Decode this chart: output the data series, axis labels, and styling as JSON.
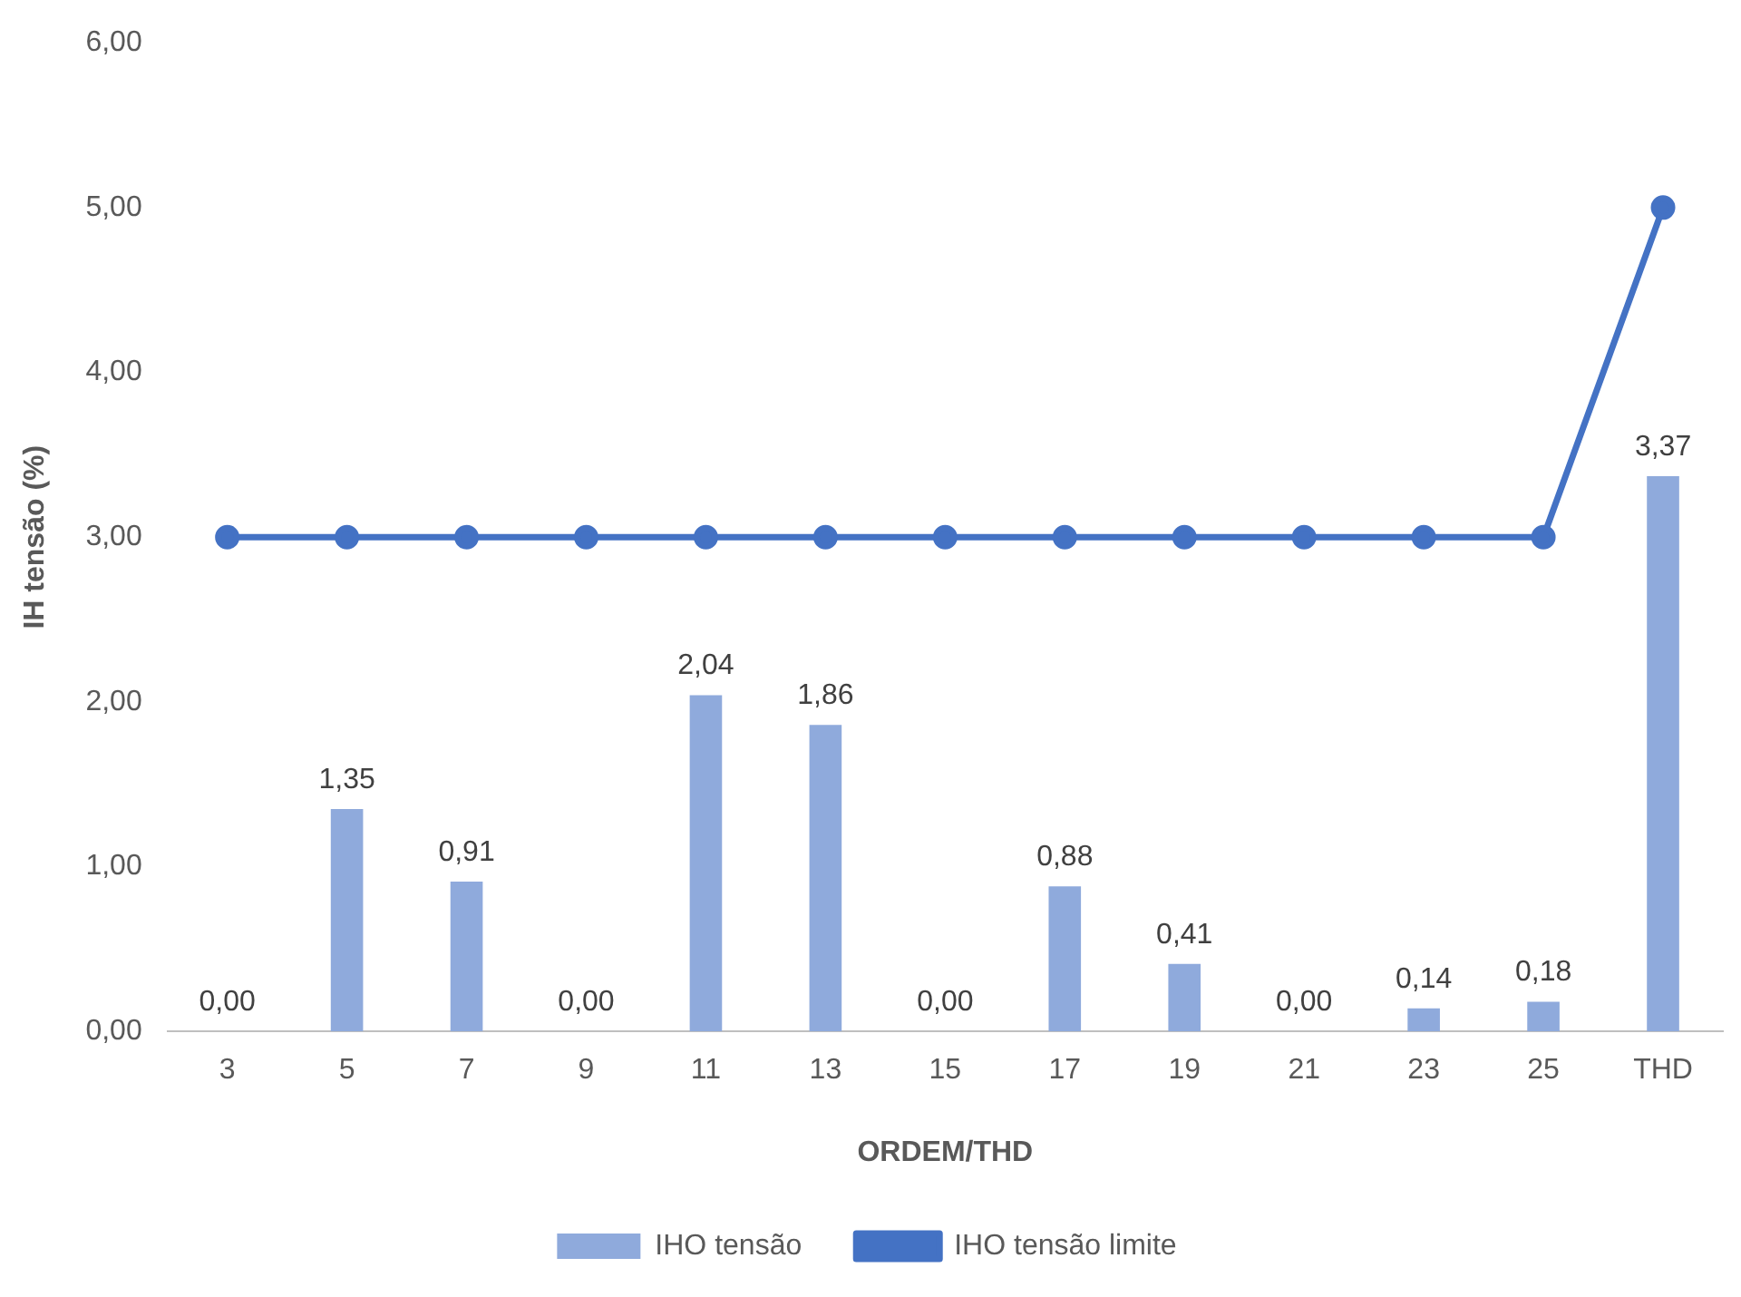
{
  "chart_data": {
    "type": "bar",
    "xlabel": "ORDEM/THD",
    "ylabel": "IH tensão (%)",
    "categories": [
      "3",
      "5",
      "7",
      "9",
      "11",
      "13",
      "15",
      "17",
      "19",
      "21",
      "23",
      "25",
      "THD"
    ],
    "series": [
      {
        "name": "IHO tensão",
        "color": "#8faadc",
        "values": [
          0,
          1.35,
          0.91,
          0,
          2.04,
          1.86,
          0,
          0.88,
          0.41,
          0,
          0.14,
          0.18,
          3.37
        ],
        "value_labels": [
          "0,00",
          "1,35",
          "0,91",
          "0,00",
          "2,04",
          "1,86",
          "0,00",
          "0,88",
          "0,41",
          "0,00",
          "0,14",
          "0,18",
          "3,37"
        ]
      },
      {
        "name": "IHO tensão limite",
        "type": "line",
        "color": "#4472c4",
        "marker": "circle",
        "values": [
          3,
          3,
          3,
          3,
          3,
          3,
          3,
          3,
          3,
          3,
          3,
          3,
          5
        ]
      }
    ],
    "ylim": [
      0,
      6
    ],
    "yticks": [
      {
        "value": 0,
        "label": "0,00"
      },
      {
        "value": 1,
        "label": "1,00"
      },
      {
        "value": 2,
        "label": "2,00"
      },
      {
        "value": 3,
        "label": "3,00"
      },
      {
        "value": 4,
        "label": "4,00"
      },
      {
        "value": 5,
        "label": "5,00"
      },
      {
        "value": 6,
        "label": "6,00"
      }
    ],
    "grid": false,
    "legend": "bottom"
  }
}
